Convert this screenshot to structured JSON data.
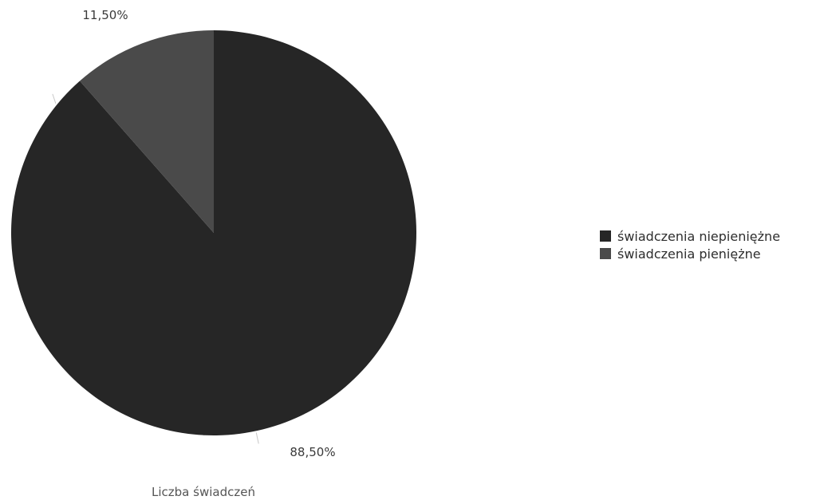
{
  "chart_data": {
    "type": "pie",
    "title": "Liczba świadczeń",
    "legend_position": "right",
    "start_angle_deg": 0,
    "direction": "clockwise",
    "slices": [
      {
        "name": "świadczenia niepieniężne",
        "value": 88.5,
        "label": "88,50%",
        "color": "#262626"
      },
      {
        "name": "świadczenia pieniężne",
        "value": 11.5,
        "label": "11,50%",
        "color": "#4a4a4a"
      }
    ]
  }
}
